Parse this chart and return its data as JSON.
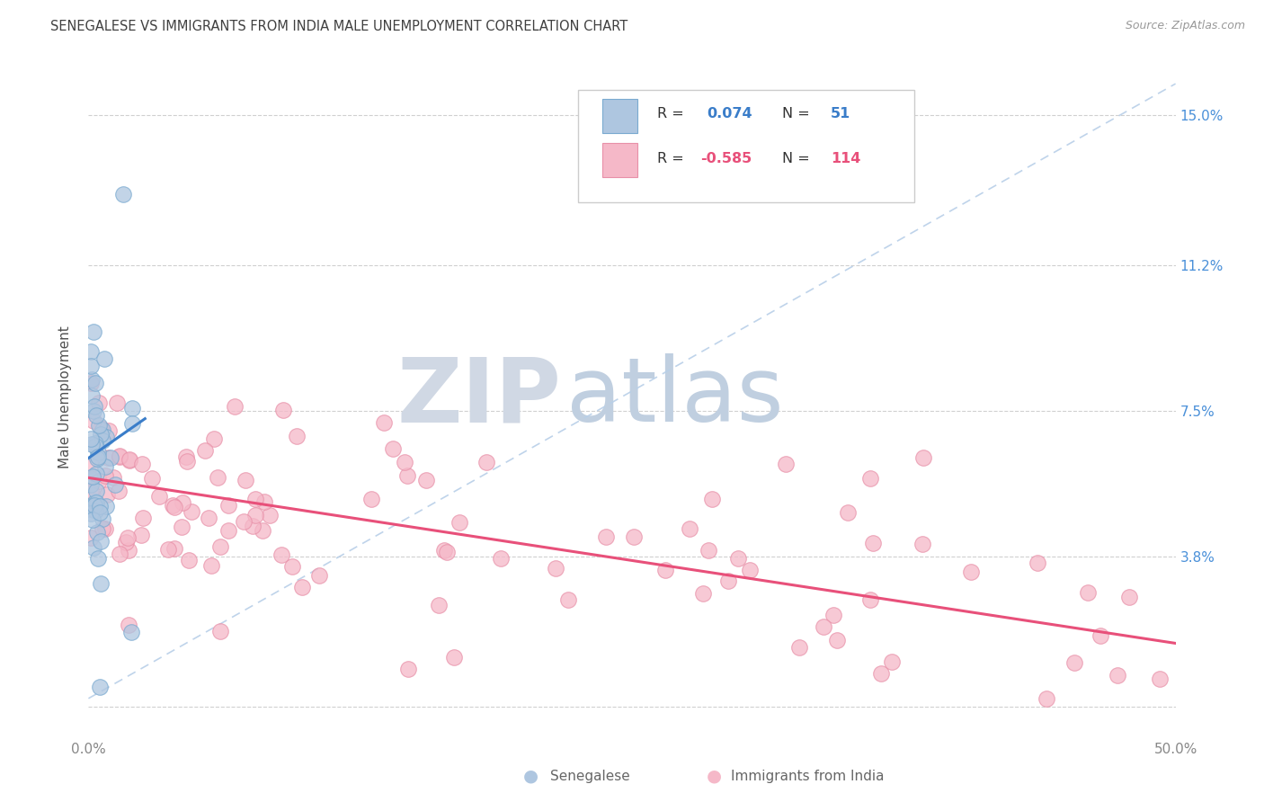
{
  "title": "SENEGALESE VS IMMIGRANTS FROM INDIA MALE UNEMPLOYMENT CORRELATION CHART",
  "source": "Source: ZipAtlas.com",
  "ylabel": "Male Unemployment",
  "xlim": [
    0.0,
    0.5
  ],
  "ylim": [
    -0.008,
    0.165
  ],
  "ytick_positions": [
    0.0,
    0.038,
    0.075,
    0.112,
    0.15
  ],
  "ytick_labels": [
    "",
    "3.8%",
    "7.5%",
    "11.2%",
    "15.0%"
  ],
  "color_blue_fill": "#aec6e0",
  "color_blue_edge": "#7aaad0",
  "color_pink_fill": "#f5b8c8",
  "color_pink_edge": "#e890a8",
  "line_blue": "#3a7dc9",
  "line_pink": "#e8507a",
  "diag_color": "#b8cfe8",
  "watermark_zip_color": "#d0d8e4",
  "watermark_atlas_color": "#c0cfe0",
  "background_color": "#ffffff",
  "grid_color": "#d0d0d0",
  "title_color": "#404040",
  "ylabel_color": "#505050",
  "tick_right_color": "#4a90d9",
  "tick_bottom_color": "#888888",
  "legend_text_dark": "#333333",
  "legend_val_blue": "#3a7dc9",
  "legend_val_pink": "#e8507a",
  "bottom_legend_color": "#666666"
}
